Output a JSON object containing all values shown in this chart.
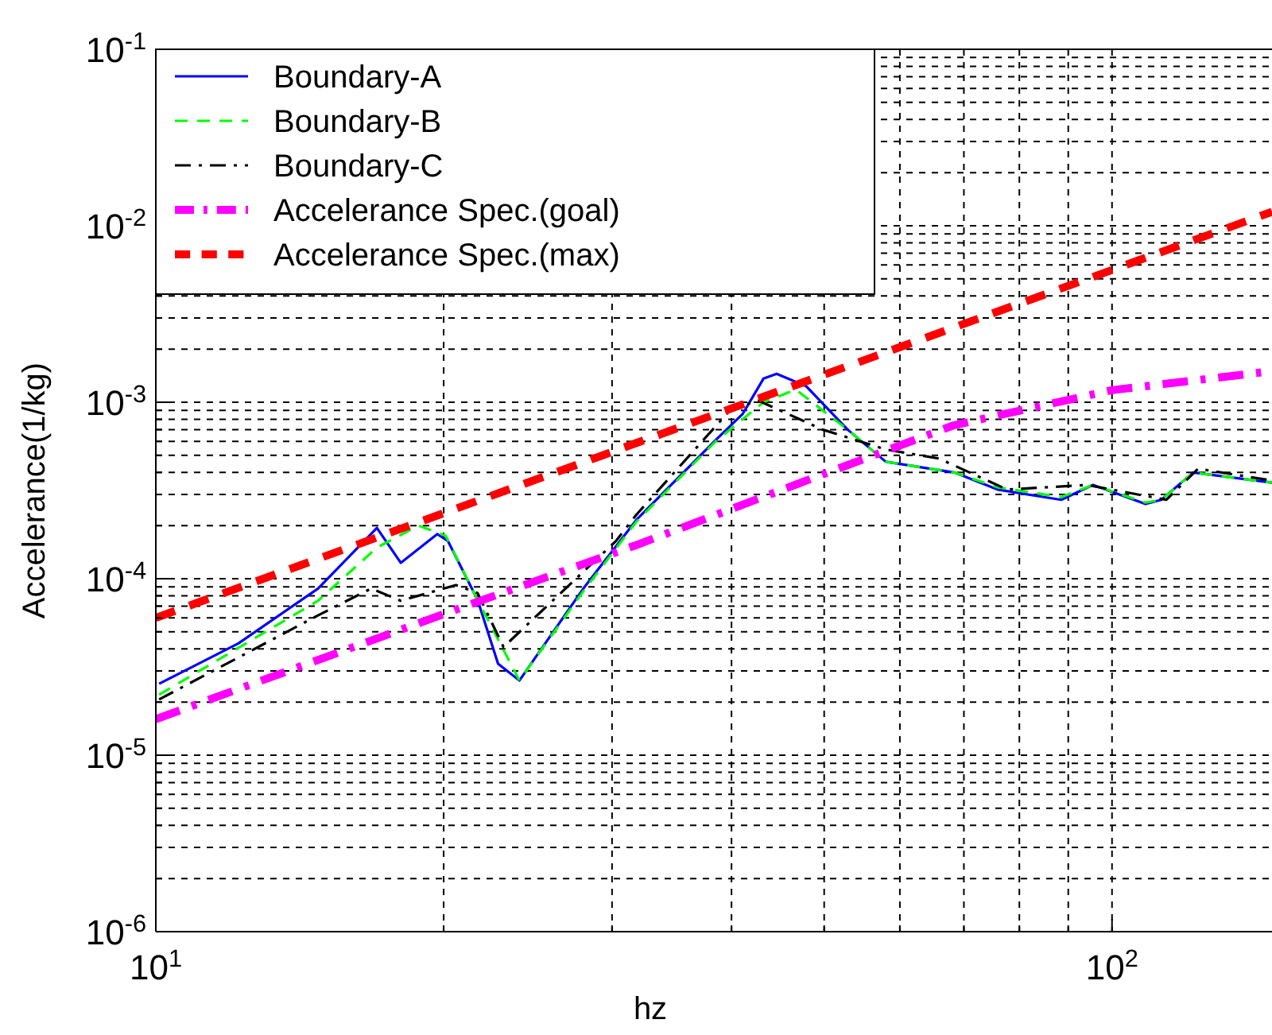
{
  "chart_data": {
    "type": "line",
    "xlabel": "hz",
    "ylabel": "Accelerance(1/kg)",
    "log": "xy",
    "grid": true,
    "legend": "top left",
    "xlim": [
      10,
      147
    ],
    "ylim": [
      1e-06,
      0.1
    ],
    "xticks": [
      {
        "value": 10,
        "label": "10$^{1}$"
      },
      {
        "value": 20,
        "label": null
      },
      {
        "value": 30,
        "label": null
      },
      {
        "value": 40,
        "label": null
      },
      {
        "value": 50,
        "label": null
      },
      {
        "value": 60,
        "label": null
      },
      {
        "value": 70,
        "label": null
      },
      {
        "value": 80,
        "label": null
      },
      {
        "value": 90,
        "label": null
      },
      {
        "value": 100,
        "label": "10$^{2}$"
      }
    ],
    "yticks": [
      {
        "value": 1e-06,
        "label": "10$^{-6}$"
      },
      {
        "value": 2e-06,
        "label": null
      },
      {
        "value": 3e-06,
        "label": null
      },
      {
        "value": 4e-06,
        "label": null
      },
      {
        "value": 5e-06,
        "label": null
      },
      {
        "value": 6e-06,
        "label": null
      },
      {
        "value": 7e-06,
        "label": null
      },
      {
        "value": 8e-06,
        "label": null
      },
      {
        "value": 9e-06,
        "label": null
      },
      {
        "value": 1e-05,
        "label": "10$^{-5}$"
      },
      {
        "value": 2e-05,
        "label": null
      },
      {
        "value": 3e-05,
        "label": null
      },
      {
        "value": 4e-05,
        "label": null
      },
      {
        "value": 5e-05,
        "label": null
      },
      {
        "value": 6e-05,
        "label": null
      },
      {
        "value": 7e-05,
        "label": null
      },
      {
        "value": 8e-05,
        "label": null
      },
      {
        "value": 9e-05,
        "label": null
      },
      {
        "value": 0.0001,
        "label": "10$^{-4}$"
      },
      {
        "value": 0.0002,
        "label": null
      },
      {
        "value": 0.0003,
        "label": null
      },
      {
        "value": 0.0004,
        "label": null
      },
      {
        "value": 0.0005,
        "label": null
      },
      {
        "value": 0.0006,
        "label": null
      },
      {
        "value": 0.0007,
        "label": null
      },
      {
        "value": 0.0008,
        "label": null
      },
      {
        "value": 0.0009,
        "label": null
      },
      {
        "value": 0.001,
        "label": "10$^{-3}$"
      },
      {
        "value": 0.002,
        "label": null
      },
      {
        "value": 0.003,
        "label": null
      },
      {
        "value": 0.004,
        "label": null
      },
      {
        "value": 0.005,
        "label": null
      },
      {
        "value": 0.006,
        "label": null
      },
      {
        "value": 0.007,
        "label": null
      },
      {
        "value": 0.008,
        "label": null
      },
      {
        "value": 0.009,
        "label": null
      },
      {
        "value": 0.01,
        "label": "10$^{-2}$"
      },
      {
        "value": 0.02,
        "label": null
      },
      {
        "value": 0.03,
        "label": null
      },
      {
        "value": 0.04,
        "label": null
      },
      {
        "value": 0.05,
        "label": null
      },
      {
        "value": 0.06,
        "label": null
      },
      {
        "value": 0.07,
        "label": null
      },
      {
        "value": 0.08,
        "label": null
      },
      {
        "value": 0.09,
        "label": null
      },
      {
        "value": 0.1,
        "label": "10$^{-1}$"
      }
    ],
    "series": [
      {
        "name": "Boundary-A",
        "color": "#0000ff",
        "line_style": "solid",
        "x": [
          10.08,
          12.2,
          14.78,
          17.03,
          18.04,
          19.7,
          20.2,
          21.7,
          22.8,
          24.0,
          28.0,
          31.8,
          38.5,
          41.1,
          43.2,
          44.6,
          47.9,
          52.9,
          58.0,
          68.4,
          75.9,
          88.5,
          95.5,
          108.4,
          112.6,
          121.6,
          147
        ],
        "values": [
          2.54e-05,
          4.3e-05,
          8.8e-05,
          0.000194,
          0.000123,
          0.000179,
          0.000164,
          7.6e-05,
          3.3e-05,
          2.65e-05,
          8.8e-05,
          0.000215,
          0.00061,
          0.00086,
          0.00136,
          0.00145,
          0.00123,
          0.0007,
          0.00046,
          0.0004,
          0.00032,
          0.00028,
          0.00034,
          0.000265,
          0.00028,
          0.0004,
          0.00035
        ]
      },
      {
        "name": "Boundary-B",
        "color": "#00ff00",
        "line_style": "dashed",
        "x": [
          10.08,
          14.78,
          17.03,
          18.82,
          20.1,
          21.7,
          24.0,
          28.0,
          31.8,
          38.5,
          43.2,
          46.7,
          52.9,
          58.0,
          68.4,
          75.9,
          88.5,
          95.5,
          108.4,
          112.6,
          121.6,
          147
        ],
        "values": [
          2.2e-05,
          7.5e-05,
          0.00015,
          0.0002,
          0.000175,
          7.6e-05,
          2.65e-05,
          8.5e-05,
          0.00021,
          0.0006,
          0.001,
          0.00118,
          0.0007,
          0.00046,
          0.0004,
          0.00033,
          0.00029,
          0.00034,
          0.00027,
          0.00028,
          0.0004,
          0.00035
        ]
      },
      {
        "name": "Boundary-C",
        "color": "#000000",
        "line_style": "dashdot",
        "x": [
          10.08,
          14.78,
          16.8,
          18.04,
          20.6,
          21.7,
          23.1,
          30.3,
          31.8,
          40.0,
          42.7,
          49.8,
          58.0,
          65.9,
          77.7,
          94.1,
          114,
          123,
          147
        ],
        "values": [
          2.07e-05,
          6.2e-05,
          8.8e-05,
          7.5e-05,
          9.2e-05,
          8.3e-05,
          4.1e-05,
          0.000164,
          0.00023,
          0.00092,
          0.00102,
          0.0007,
          0.00054,
          0.00048,
          0.00032,
          0.00034,
          0.00028,
          0.00042,
          0.00036
        ]
      },
      {
        "name": "Accelerance Spec.(goal)",
        "color": "#ff00ff",
        "line_style": "dashdot",
        "x": [
          10,
          21.7,
          31.8,
          46.6,
          68.3,
          100,
          147
        ],
        "values": [
          1.6e-05,
          7.4e-05,
          0.000155,
          0.00034,
          0.00074,
          0.00117,
          0.0015
        ]
      },
      {
        "name": "Accelerance Spec.(max)",
        "color": "#ff0000",
        "line_style": "dashed",
        "x": [
          10,
          147
        ],
        "values": [
          6e-05,
          0.012
        ]
      }
    ]
  }
}
